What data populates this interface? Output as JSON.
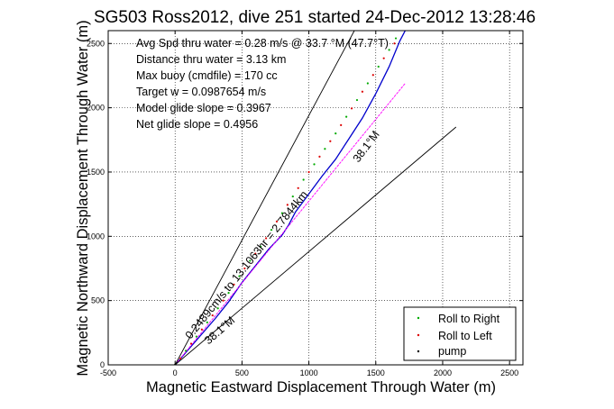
{
  "chart_data": {
    "type": "line",
    "title": "SG503 Ross2012, dive 251 started 24-Dec-2012 13:28:46",
    "xlabel": "Magnetic Eastward Displacement Through Water (m)",
    "ylabel": "Magnetic Northward Displacement Through Water (m)",
    "xlim": [
      -500,
      2600
    ],
    "ylim": [
      0,
      2600
    ],
    "xticks": [
      -500,
      0,
      500,
      1000,
      1500,
      2000,
      2500
    ],
    "yticks": [
      0,
      500,
      1000,
      1500,
      2000,
      2500
    ],
    "grid": true,
    "legend_position": "bottom-right",
    "stats_text": [
      "Avg Spd thru water = 0.28 m/s @ 33.7 °M (47.7°T)",
      "Distance thru water = 3.13 km",
      "Max buoy (cmdfile) = 170 cc",
      "Target w = 0.0987654 m/s",
      "Model glide slope = 0.3967",
      "Net glide slope = 0.4956"
    ],
    "annotations": [
      {
        "text": "0.2489cm/s to 13.1063hr = 2.7844km",
        "x": 115,
        "y": 195,
        "angle_deg": 51
      },
      {
        "text": "38.1°M",
        "x": 1370,
        "y": 1570,
        "angle_deg": 53
      },
      {
        "text": "38.1°M",
        "x": 250,
        "y": 155,
        "angle_deg": 41
      }
    ],
    "series": [
      {
        "name": "Roll to Right",
        "type": "scatter",
        "color": "#00aa00",
        "x": [
          0,
          80,
          160,
          240,
          320,
          400,
          480,
          560,
          640,
          720,
          800,
          880,
          960,
          1040,
          1120,
          1200,
          1280,
          1360,
          1440,
          1520,
          1600,
          1650
        ],
        "y": [
          0,
          110,
          220,
          330,
          440,
          560,
          690,
          810,
          920,
          1050,
          1180,
          1310,
          1440,
          1560,
          1680,
          1800,
          1930,
          2060,
          2190,
          2320,
          2450,
          2540
        ]
      },
      {
        "name": "Roll to Left",
        "type": "scatter",
        "color": "#dd0000",
        "x": [
          40,
          120,
          200,
          280,
          360,
          440,
          520,
          600,
          680,
          760,
          840,
          920,
          1000,
          1080,
          1160,
          1240,
          1320,
          1400,
          1480,
          1560,
          1640
        ],
        "y": [
          50,
          165,
          275,
          385,
          500,
          625,
          750,
          865,
          985,
          1115,
          1245,
          1375,
          1500,
          1620,
          1740,
          1865,
          1995,
          2125,
          2255,
          2385,
          2500
        ]
      },
      {
        "name": "pump",
        "type": "scatter",
        "color": "#000000",
        "x": [
          0
        ],
        "y": [
          0
        ]
      },
      {
        "name": "",
        "type": "line",
        "color": "#0000cc",
        "x": [
          0,
          100,
          200,
          300,
          400,
          500,
          600,
          700,
          800,
          850,
          900,
          1000,
          1100,
          1200,
          1300,
          1400,
          1500,
          1600,
          1680,
          1720
        ],
        "y": [
          0,
          120,
          240,
          360,
          490,
          640,
          770,
          900,
          1010,
          1090,
          1190,
          1330,
          1470,
          1600,
          1760,
          1920,
          2110,
          2320,
          2520,
          2600
        ]
      },
      {
        "name": "",
        "type": "line",
        "color": "#ff00ff",
        "x": [
          0,
          1720
        ],
        "y": [
          0,
          2190
        ]
      },
      {
        "name": "",
        "type": "line",
        "color": "#000000",
        "x": [
          0,
          1340
        ],
        "y": [
          0,
          2600
        ]
      },
      {
        "name": "",
        "type": "line",
        "color": "#000000",
        "x": [
          0,
          2100
        ],
        "y": [
          0,
          1850
        ]
      }
    ]
  }
}
